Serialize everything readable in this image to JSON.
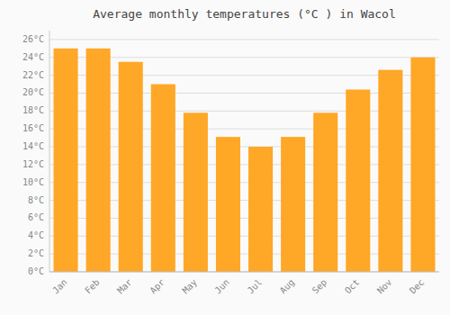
{
  "chart_data": {
    "type": "bar",
    "title": "Average monthly temperatures (°C ) in Wacol",
    "categories": [
      "Jan",
      "Feb",
      "Mar",
      "Apr",
      "May",
      "Jun",
      "Jul",
      "Aug",
      "Sep",
      "Oct",
      "Nov",
      "Dec"
    ],
    "values": [
      25.0,
      25.0,
      23.5,
      21.0,
      17.8,
      15.1,
      14.0,
      15.1,
      17.8,
      20.4,
      22.6,
      24.0
    ],
    "color": "#FFA726",
    "ylim": [
      0,
      27
    ],
    "yticks": [
      {
        "value": 0,
        "label": "0°C"
      },
      {
        "value": 2,
        "label": "2°C"
      },
      {
        "value": 4,
        "label": "4°C"
      },
      {
        "value": 6,
        "label": "6°C"
      },
      {
        "value": 8,
        "label": "8°C"
      },
      {
        "value": 10,
        "label": "10°C"
      },
      {
        "value": 12,
        "label": "12°C"
      },
      {
        "value": 14,
        "label": "14°C"
      },
      {
        "value": 16,
        "label": "16°C"
      },
      {
        "value": 18,
        "label": "18°C"
      },
      {
        "value": 20,
        "label": "20°C"
      },
      {
        "value": 22,
        "label": "22°C"
      },
      {
        "value": 24,
        "label": "24°C"
      },
      {
        "value": 26,
        "label": "26°C"
      }
    ],
    "grid": true
  }
}
